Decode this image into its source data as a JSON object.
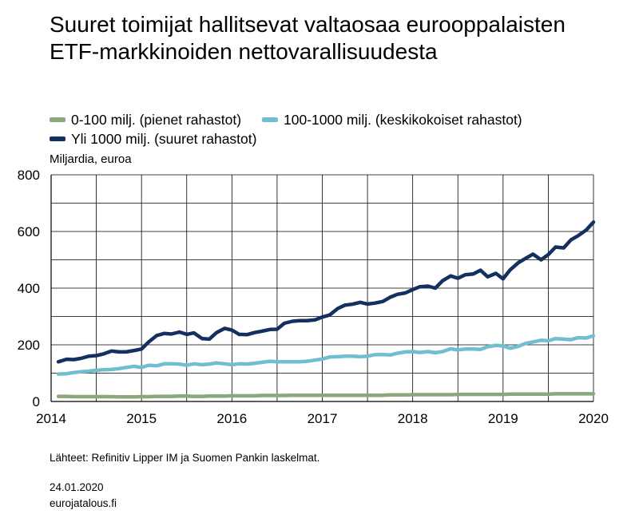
{
  "title": "Suuret toimijat hallitsevat valtaosaa eurooppalaisten ETF-markkinoiden nettovarallisuudesta",
  "legend": [
    {
      "label": "0-100 milj. (pienet rahastot)",
      "color": "#8aa87c"
    },
    {
      "label": "100-1000 milj. (keskikokoiset rahastot)",
      "color": "#6fbfd0"
    },
    {
      "label": "Yli 1000 milj. (suuret rahastot)",
      "color": "#13305e"
    }
  ],
  "unit_label": "Miljardia, euroa",
  "source": "Lähteet: Refinitiv Lipper IM ja Suomen Pankin laskelmat.",
  "date": "24.01.2020",
  "site": "eurojatalous.fi",
  "chart_data": {
    "type": "line",
    "ylabel": "Miljardia, euroa",
    "ylim": [
      0,
      800
    ],
    "yticks": [
      0,
      200,
      400,
      600,
      800
    ],
    "xlim": [
      2014,
      2020
    ],
    "xticks": [
      2014,
      2015,
      2016,
      2017,
      2018,
      2019,
      2020
    ],
    "grid": true,
    "legend_position": "top",
    "x": [
      2014.08,
      2014.17,
      2014.25,
      2014.33,
      2014.42,
      2014.5,
      2014.58,
      2014.67,
      2014.75,
      2014.83,
      2014.92,
      2015.0,
      2015.08,
      2015.17,
      2015.25,
      2015.33,
      2015.42,
      2015.5,
      2015.58,
      2015.67,
      2015.75,
      2015.83,
      2015.92,
      2016.0,
      2016.08,
      2016.17,
      2016.25,
      2016.33,
      2016.42,
      2016.5,
      2016.58,
      2016.67,
      2016.75,
      2016.83,
      2016.92,
      2017.0,
      2017.08,
      2017.17,
      2017.25,
      2017.33,
      2017.42,
      2017.5,
      2017.58,
      2017.67,
      2017.75,
      2017.83,
      2017.92,
      2018.0,
      2018.08,
      2018.17,
      2018.25,
      2018.33,
      2018.42,
      2018.5,
      2018.58,
      2018.67,
      2018.75,
      2018.83,
      2018.92,
      2019.0,
      2019.08,
      2019.17,
      2019.25,
      2019.33,
      2019.42,
      2019.5,
      2019.58,
      2019.67,
      2019.75,
      2019.83,
      2019.92,
      2020.0
    ],
    "series": [
      {
        "name": "0-100 milj. (pienet rahastot)",
        "color": "#8aa87c",
        "values": [
          18,
          18,
          17,
          17,
          17,
          17,
          17,
          17,
          16,
          16,
          16,
          17,
          17,
          18,
          18,
          18,
          19,
          19,
          18,
          18,
          19,
          19,
          19,
          20,
          20,
          20,
          20,
          21,
          21,
          21,
          21,
          22,
          22,
          22,
          22,
          22,
          22,
          22,
          22,
          22,
          22,
          22,
          22,
          22,
          23,
          23,
          23,
          24,
          24,
          24,
          24,
          24,
          24,
          25,
          25,
          25,
          25,
          25,
          25,
          25,
          26,
          26,
          26,
          26,
          26,
          26,
          27,
          27,
          27,
          27,
          27,
          27
        ]
      },
      {
        "name": "100-1000 milj. (keskikokoiset rahastot)",
        "color": "#6fbfd0",
        "values": [
          97,
          98,
          102,
          105,
          107,
          110,
          112,
          113,
          116,
          120,
          124,
          120,
          128,
          126,
          133,
          133,
          132,
          128,
          133,
          130,
          132,
          136,
          133,
          130,
          133,
          132,
          135,
          138,
          142,
          140,
          140,
          140,
          140,
          142,
          146,
          150,
          157,
          158,
          160,
          160,
          158,
          160,
          165,
          166,
          164,
          170,
          175,
          176,
          173,
          176,
          172,
          176,
          186,
          182,
          185,
          185,
          184,
          193,
          198,
          196,
          188,
          195,
          205,
          210,
          216,
          214,
          222,
          220,
          218,
          225,
          224,
          232
        ]
      },
      {
        "name": "Yli 1000 milj. (suuret rahastot)",
        "color": "#13305e",
        "values": [
          140,
          149,
          148,
          152,
          160,
          162,
          168,
          178,
          175,
          175,
          180,
          185,
          210,
          233,
          240,
          238,
          245,
          237,
          242,
          222,
          220,
          243,
          258,
          252,
          237,
          236,
          243,
          248,
          254,
          255,
          276,
          283,
          285,
          285,
          288,
          298,
          305,
          328,
          340,
          343,
          350,
          344,
          347,
          353,
          368,
          378,
          383,
          395,
          405,
          407,
          400,
          426,
          443,
          435,
          447,
          450,
          463,
          440,
          452,
          433,
          465,
          490,
          505,
          520,
          500,
          518,
          545,
          542,
          570,
          585,
          605,
          633
        ]
      }
    ]
  }
}
